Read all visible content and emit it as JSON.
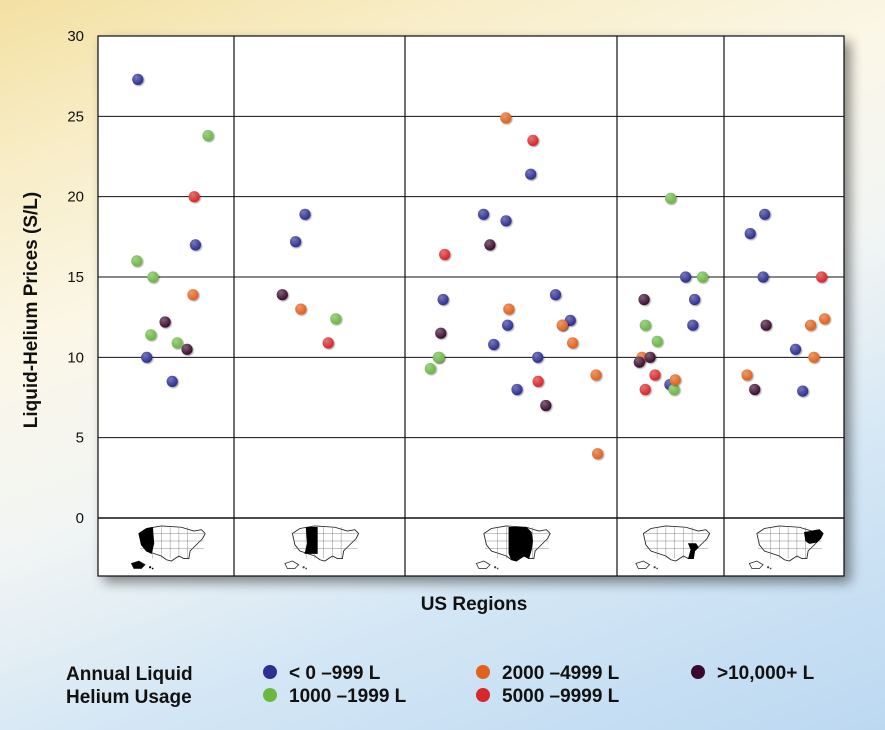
{
  "chart_data": {
    "type": "scatter",
    "title": "",
    "xlabel": "US Regions",
    "ylabel": "Liquid-Helium Prices (S/L)",
    "ylim": [
      0,
      30
    ],
    "yticks": [
      0,
      5,
      10,
      15,
      20,
      25,
      30
    ],
    "grid": true,
    "regions": [
      "West",
      "Mountain",
      "Central",
      "Southeast",
      "Northeast"
    ],
    "legend": {
      "title_lines": [
        "Annual Liquid",
        "Helium Usage"
      ],
      "placement": "bottom"
    },
    "series": [
      {
        "name": "< 0 –999 L",
        "color": "#2e2f93",
        "points": [
          {
            "region": "West",
            "y": 27.3
          },
          {
            "region": "West",
            "y": 17.0
          },
          {
            "region": "West",
            "y": 10.0
          },
          {
            "region": "West",
            "y": 8.5
          },
          {
            "region": "Mountain",
            "y": 18.9
          },
          {
            "region": "Mountain",
            "y": 17.2
          },
          {
            "region": "Central",
            "y": 21.4
          },
          {
            "region": "Central",
            "y": 18.5
          },
          {
            "region": "Central",
            "y": 18.9
          },
          {
            "region": "Central",
            "y": 13.9
          },
          {
            "region": "Central",
            "y": 13.6
          },
          {
            "region": "Central",
            "y": 12.3
          },
          {
            "region": "Central",
            "y": 12.0
          },
          {
            "region": "Central",
            "y": 12.0
          },
          {
            "region": "Central",
            "y": 10.8
          },
          {
            "region": "Central",
            "y": 10.0
          },
          {
            "region": "Central",
            "y": 8.0
          },
          {
            "region": "Southeast",
            "y": 15.0
          },
          {
            "region": "Southeast",
            "y": 13.6
          },
          {
            "region": "Southeast",
            "y": 12.0
          },
          {
            "region": "Southeast",
            "y": 8.3
          },
          {
            "region": "Northeast",
            "y": 18.9
          },
          {
            "region": "Northeast",
            "y": 17.7
          },
          {
            "region": "Northeast",
            "y": 15.0
          },
          {
            "region": "Northeast",
            "y": 10.5
          },
          {
            "region": "Northeast",
            "y": 7.9
          }
        ]
      },
      {
        "name": "1000 –1999 L",
        "color": "#6cb744",
        "points": [
          {
            "region": "West",
            "y": 23.8
          },
          {
            "region": "West",
            "y": 16.0
          },
          {
            "region": "West",
            "y": 15.0
          },
          {
            "region": "West",
            "y": 11.4
          },
          {
            "region": "West",
            "y": 10.9
          },
          {
            "region": "Mountain",
            "y": 12.4
          },
          {
            "region": "Central",
            "y": 10.0
          },
          {
            "region": "Central",
            "y": 9.3
          },
          {
            "region": "Central",
            "y": 10.0
          },
          {
            "region": "Southeast",
            "y": 19.9
          },
          {
            "region": "Southeast",
            "y": 12.0
          },
          {
            "region": "Southeast",
            "y": 11.0
          },
          {
            "region": "Southeast",
            "y": 15.0
          },
          {
            "region": "Southeast",
            "y": 8.0
          }
        ]
      },
      {
        "name": "2000 –4999 L",
        "color": "#e0621f",
        "points": [
          {
            "region": "West",
            "y": 13.9
          },
          {
            "region": "Mountain",
            "y": 13.0
          },
          {
            "region": "Central",
            "y": 24.9
          },
          {
            "region": "Central",
            "y": 13.0
          },
          {
            "region": "Central",
            "y": 12.0
          },
          {
            "region": "Central",
            "y": 10.9
          },
          {
            "region": "Central",
            "y": 8.9
          },
          {
            "region": "Central",
            "y": 4.0
          },
          {
            "region": "Southeast",
            "y": 10.0
          },
          {
            "region": "Southeast",
            "y": 8.6
          },
          {
            "region": "Northeast",
            "y": 12.4
          },
          {
            "region": "Northeast",
            "y": 12.0
          },
          {
            "region": "Northeast",
            "y": 10.0
          },
          {
            "region": "Northeast",
            "y": 8.9
          }
        ]
      },
      {
        "name": "5000 –9999 L",
        "color": "#d8262a",
        "points": [
          {
            "region": "West",
            "y": 20.0
          },
          {
            "region": "Mountain",
            "y": 10.9
          },
          {
            "region": "Central",
            "y": 23.5
          },
          {
            "region": "Central",
            "y": 16.4
          },
          {
            "region": "Central",
            "y": 8.5
          },
          {
            "region": "Southeast",
            "y": 8.9
          },
          {
            "region": "Southeast",
            "y": 8.0
          },
          {
            "region": "Northeast",
            "y": 15.0
          }
        ]
      },
      {
        "name": ">10,000+ L",
        "color": "#3a0a2e",
        "points": [
          {
            "region": "West",
            "y": 12.2
          },
          {
            "region": "West",
            "y": 10.5
          },
          {
            "region": "Mountain",
            "y": 13.9
          },
          {
            "region": "Central",
            "y": 17.0
          },
          {
            "region": "Central",
            "y": 11.5
          },
          {
            "region": "Central",
            "y": 7.0
          },
          {
            "region": "Southeast",
            "y": 13.6
          },
          {
            "region": "Southeast",
            "y": 10.0
          },
          {
            "region": "Southeast",
            "y": 9.7
          },
          {
            "region": "Northeast",
            "y": 12.0
          },
          {
            "region": "Northeast",
            "y": 8.0
          }
        ]
      }
    ]
  }
}
